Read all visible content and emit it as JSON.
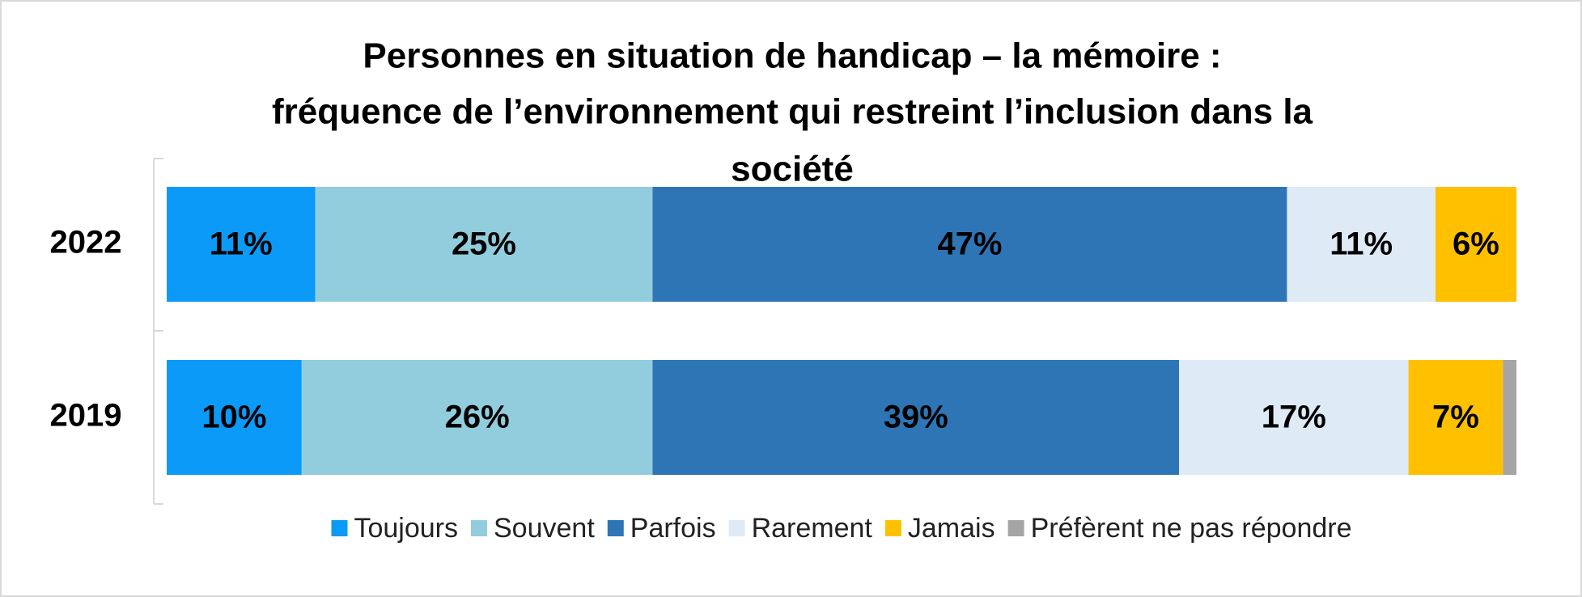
{
  "chart_data": {
    "type": "stacked-barh",
    "title": [
      "Personnes en situation de handicap – la mémoire :",
      "fréquence de l’environnement qui restreint l’inclusion dans la",
      "société"
    ],
    "categories": [
      "2022",
      "2019"
    ],
    "xlim": [
      0,
      100
    ],
    "series": [
      {
        "name": "Toujours",
        "color": "#0b9af8",
        "values": [
          11,
          10
        ],
        "value_labels": [
          "11%",
          "10%"
        ]
      },
      {
        "name": "Souvent",
        "color": "#92cddd",
        "values": [
          25,
          26
        ],
        "value_labels": [
          "25%",
          "26%"
        ]
      },
      {
        "name": "Parfois",
        "color": "#2e75b6",
        "values": [
          47,
          39
        ],
        "value_labels": [
          "47%",
          "39%"
        ]
      },
      {
        "name": "Rarement",
        "color": "#deebf7",
        "values": [
          11,
          17
        ],
        "value_labels": [
          "11%",
          "17%"
        ]
      },
      {
        "name": "Jamais",
        "color": "#ffc000",
        "values": [
          6,
          7
        ],
        "value_labels": [
          "6%",
          "7%"
        ]
      },
      {
        "name": "Préfèrent ne pas répondre",
        "color": "#a5a5a5",
        "values": [
          0,
          1
        ],
        "value_labels": [
          null,
          null
        ]
      }
    ],
    "legend": "bottom"
  }
}
